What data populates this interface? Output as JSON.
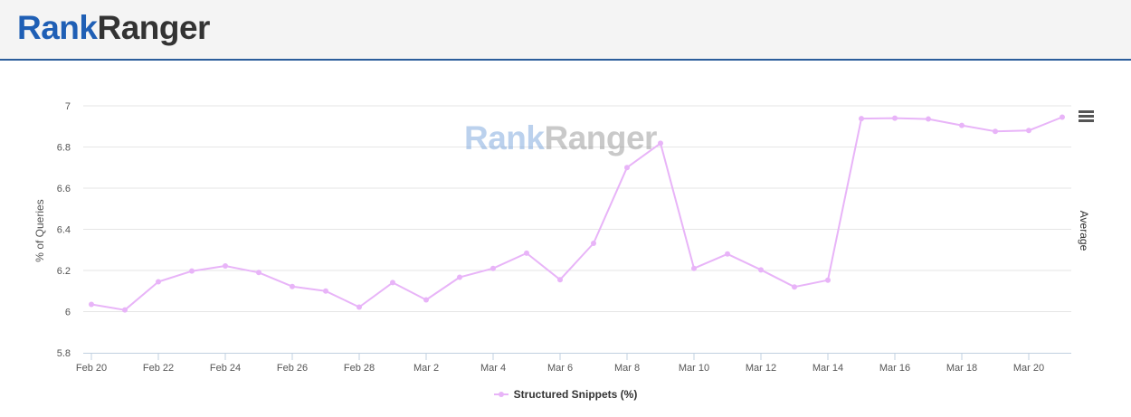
{
  "header": {
    "logo_rank": "Rank",
    "logo_ranger": "Ranger"
  },
  "watermark": {
    "rank": "Rank",
    "ranger": "Ranger"
  },
  "menu": {
    "icon": "hamburger-menu-icon"
  },
  "chart_data": {
    "type": "line",
    "ylabel": "% of Queries",
    "y2label": "Average",
    "ylim": [
      5.8,
      7.0
    ],
    "yticks": [
      "5.8",
      "6",
      "6.2",
      "6.4",
      "6.6",
      "6.8",
      "7"
    ],
    "xtick_labels": [
      "Feb 20",
      "Feb 22",
      "Feb 24",
      "Feb 26",
      "Feb 28",
      "Mar 2",
      "Mar 4",
      "Mar 6",
      "Mar 8",
      "Mar 10",
      "Mar 12",
      "Mar 14",
      "Mar 16",
      "Mar 18",
      "Mar 20"
    ],
    "grid": true,
    "legend_position": "bottom-center",
    "color": "#e8b4f8",
    "series": [
      {
        "name": "Structured Snippets (%)",
        "x": [
          "Feb 20",
          "Feb 21",
          "Feb 22",
          "Feb 23",
          "Feb 24",
          "Feb 25",
          "Feb 26",
          "Feb 27",
          "Feb 28",
          "Mar 1",
          "Mar 2",
          "Mar 3",
          "Mar 4",
          "Mar 5",
          "Mar 6",
          "Mar 7",
          "Mar 8",
          "Mar 9",
          "Mar 10",
          "Mar 11",
          "Mar 12",
          "Mar 13",
          "Mar 14",
          "Mar 15",
          "Mar 16",
          "Mar 17",
          "Mar 18",
          "Mar 19",
          "Mar 20",
          "Mar 21"
        ],
        "values": [
          6.035,
          6.008,
          6.145,
          6.197,
          6.222,
          6.19,
          6.122,
          6.1,
          6.022,
          6.141,
          6.057,
          6.167,
          6.21,
          6.284,
          6.155,
          6.332,
          6.7,
          6.818,
          6.21,
          6.28,
          6.203,
          6.12,
          6.153,
          6.938,
          6.94,
          6.936,
          6.905,
          6.876,
          6.88,
          6.945
        ]
      }
    ]
  }
}
